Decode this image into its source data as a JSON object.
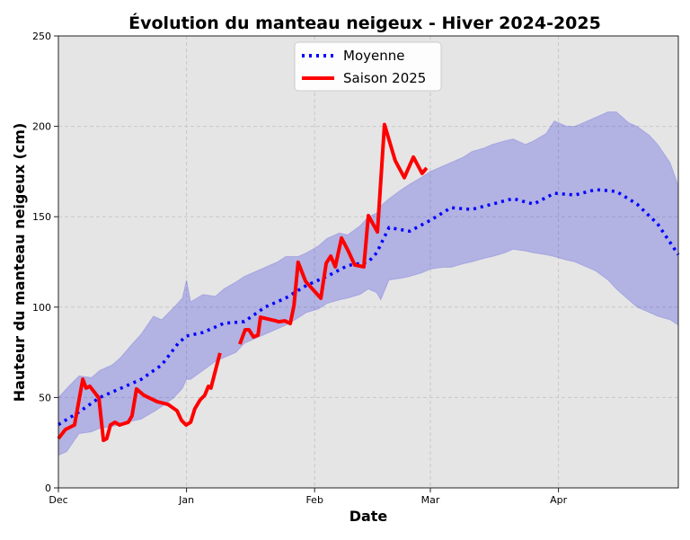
{
  "chart_data": {
    "type": "line",
    "title": "Évolution du manteau neigeux - Hiver 2024-2025",
    "xlabel": "Date",
    "ylabel": "Hauteur du manteau neigeux (cm)",
    "x_unit": "days since Dec 1, 2024",
    "xlim": [
      0,
      150
    ],
    "ylim": [
      0,
      250
    ],
    "yticks": [
      0,
      50,
      100,
      150,
      200,
      250
    ],
    "xticks": [
      {
        "day": 0,
        "label": "Dec"
      },
      {
        "day": 31,
        "label": "Jan"
      },
      {
        "day": 62,
        "label": "Feb"
      },
      {
        "day": 90,
        "label": "Mar"
      },
      {
        "day": 121,
        "label": "Apr"
      }
    ],
    "grid": true,
    "legend_position": "top-center",
    "band": {
      "color": "#0000cc",
      "days": [
        0,
        2,
        5,
        8,
        10,
        13,
        15,
        18,
        20,
        23,
        25,
        28,
        30,
        31,
        32,
        35,
        38,
        40,
        43,
        45,
        48,
        50,
        53,
        55,
        58,
        60,
        63,
        65,
        68,
        70,
        73,
        75,
        77,
        78,
        80,
        83,
        85,
        88,
        90,
        93,
        95,
        98,
        100,
        103,
        105,
        108,
        110,
        113,
        115,
        118,
        120,
        123,
        125,
        128,
        130,
        133,
        135,
        138,
        140,
        143,
        145,
        148,
        150
      ],
      "upper": [
        50,
        55,
        62,
        61,
        65,
        68,
        72,
        80,
        85,
        95,
        93,
        100,
        105,
        115,
        103,
        107,
        106,
        110,
        114,
        117,
        120,
        122,
        125,
        128,
        128,
        130,
        134,
        138,
        141,
        140,
        145,
        150,
        152,
        156,
        160,
        165,
        168,
        172,
        175,
        178,
        180,
        183,
        186,
        188,
        190,
        192,
        193,
        190,
        192,
        196,
        203,
        200,
        200,
        203,
        205,
        208,
        208,
        202,
        200,
        195,
        190,
        180,
        167
      ],
      "lower": [
        18,
        20,
        30,
        31,
        33,
        34,
        35,
        37,
        38,
        42,
        45,
        50,
        55,
        60,
        60,
        65,
        70,
        72,
        75,
        80,
        83,
        85,
        88,
        90,
        94,
        97,
        99,
        102,
        104,
        105,
        107,
        110,
        108,
        104,
        115,
        116,
        117,
        119,
        121,
        122,
        122,
        124,
        125,
        127,
        128,
        130,
        132,
        131,
        130,
        129,
        128,
        126,
        125,
        122,
        120,
        115,
        110,
        104,
        100,
        97,
        95,
        93,
        90
      ]
    },
    "series": [
      {
        "name": "Moyenne",
        "color": "#0000ff",
        "style": "dotted",
        "days": [
          0,
          5,
          10,
          15,
          20,
          25,
          29,
          31,
          35,
          40,
          45,
          50,
          55,
          60,
          65,
          70,
          75,
          77,
          80,
          85,
          90,
          95,
          100,
          105,
          110,
          115,
          120,
          125,
          130,
          135,
          140,
          145,
          150
        ],
        "values": [
          35,
          42,
          50,
          55,
          60,
          68,
          80,
          84,
          86,
          91,
          92,
          100,
          105,
          112,
          117,
          123,
          125,
          130,
          144,
          142,
          148,
          155,
          154,
          157,
          160,
          157,
          163,
          162,
          165,
          164,
          157,
          146,
          129
        ]
      },
      {
        "name": "Saison 2025",
        "color": "#ff0000",
        "style": "solid",
        "segments": [
          {
            "days": [
              0,
              1.7,
              3.9,
              5.9,
              6.7,
              7.6,
              9.8,
              10.9,
              11.7,
              12.6,
              13.7,
              14.8,
              16.9,
              17.8,
              18.9,
              20.7,
              23.9,
              26.5,
              28.7,
              29.8,
              30.9,
              32,
              33,
              34.3,
              35.4,
              36.3,
              36.9,
              39.1
            ],
            "values": [
              27.3,
              32.3,
              34.8,
              60.1,
              55.2,
              56.2,
              49.7,
              26.3,
              27.3,
              34.8,
              36.3,
              34.8,
              36.3,
              39.8,
              54.7,
              51.2,
              47.7,
              46.2,
              42.7,
              37.3,
              34.8,
              36.3,
              43.7,
              48.7,
              51.2,
              56.2,
              55.2,
              74.6
            ]
          },
          {
            "days": [
              43.9,
              45.2,
              46.1,
              47.2,
              48.3,
              48.9,
              50.7,
              52.6,
              53.3,
              54.8,
              56.1,
              57,
              58,
              59.8,
              63.5,
              64.8,
              65.9,
              67,
              68.5,
              70,
              71.7,
              73.9,
              75,
              77.2,
              78.9,
              81.5,
              83.7,
              85.9,
              88,
              89.1
            ],
            "values": [
              79.5,
              87.5,
              87.5,
              83.5,
              84.5,
              94.4,
              93.4,
              92.4,
              91.9,
              92.4,
              90.9,
              100.9,
              124.8,
              114.3,
              104.9,
              124.3,
              128.2,
              122.3,
              138.2,
              131.7,
              123.3,
              122.3,
              150.6,
              141.6,
              201,
              181,
              171.6,
              183,
              174,
              177
            ]
          }
        ]
      }
    ]
  }
}
